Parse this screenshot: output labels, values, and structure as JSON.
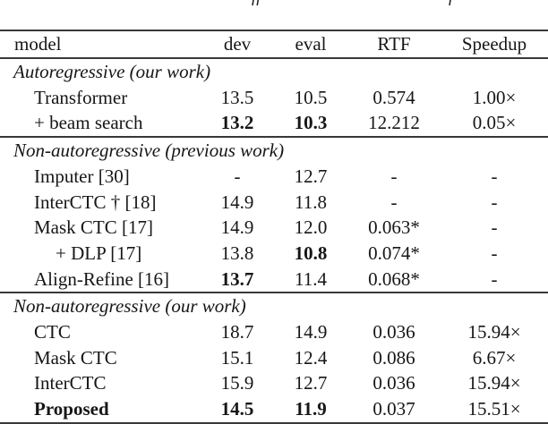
{
  "caption_fragments": {
    "left": "ff",
    "right": "f"
  },
  "table": {
    "columns": [
      "model",
      "dev",
      "eval",
      "RTF",
      "Speedup"
    ],
    "sections": [
      {
        "title": "Autoregressive (our work)",
        "rows": [
          {
            "model": "Transformer",
            "dev": "13.5",
            "eval": "10.5",
            "rtf": "0.574",
            "speedup": "1.00×"
          },
          {
            "model": "+ beam search",
            "dev": "13.2",
            "eval": "10.3",
            "rtf": "12.212",
            "speedup": "0.05×"
          }
        ]
      },
      {
        "title": "Non-autoregressive (previous work)",
        "rows": [
          {
            "model": "Imputer [30]",
            "dev": "-",
            "eval": "12.7",
            "rtf": "-",
            "speedup": "-"
          },
          {
            "model": "InterCTC † [18]",
            "dev": "14.9",
            "eval": "11.8",
            "rtf": "-",
            "speedup": "-"
          },
          {
            "model": "Mask CTC [17]",
            "dev": "14.9",
            "eval": "12.0",
            "rtf": "0.063*",
            "speedup": "-"
          },
          {
            "model": "+ DLP [17]",
            "dev": "13.8",
            "eval": "10.8",
            "rtf": "0.074*",
            "speedup": "-"
          },
          {
            "model": "Align-Refine [16]",
            "dev": "13.7",
            "eval": "11.4",
            "rtf": "0.068*",
            "speedup": "-"
          }
        ]
      },
      {
        "title": "Non-autoregressive (our work)",
        "rows": [
          {
            "model": "CTC",
            "dev": "18.7",
            "eval": "14.9",
            "rtf": "0.036",
            "speedup": "15.94×"
          },
          {
            "model": "Mask CTC",
            "dev": "15.1",
            "eval": "12.4",
            "rtf": "0.086",
            "speedup": "6.67×"
          },
          {
            "model": "InterCTC",
            "dev": "15.9",
            "eval": "12.7",
            "rtf": "0.036",
            "speedup": "15.94×"
          },
          {
            "model": "Proposed",
            "dev": "14.5",
            "eval": "11.9",
            "rtf": "0.037",
            "speedup": "15.51×"
          }
        ]
      }
    ]
  }
}
